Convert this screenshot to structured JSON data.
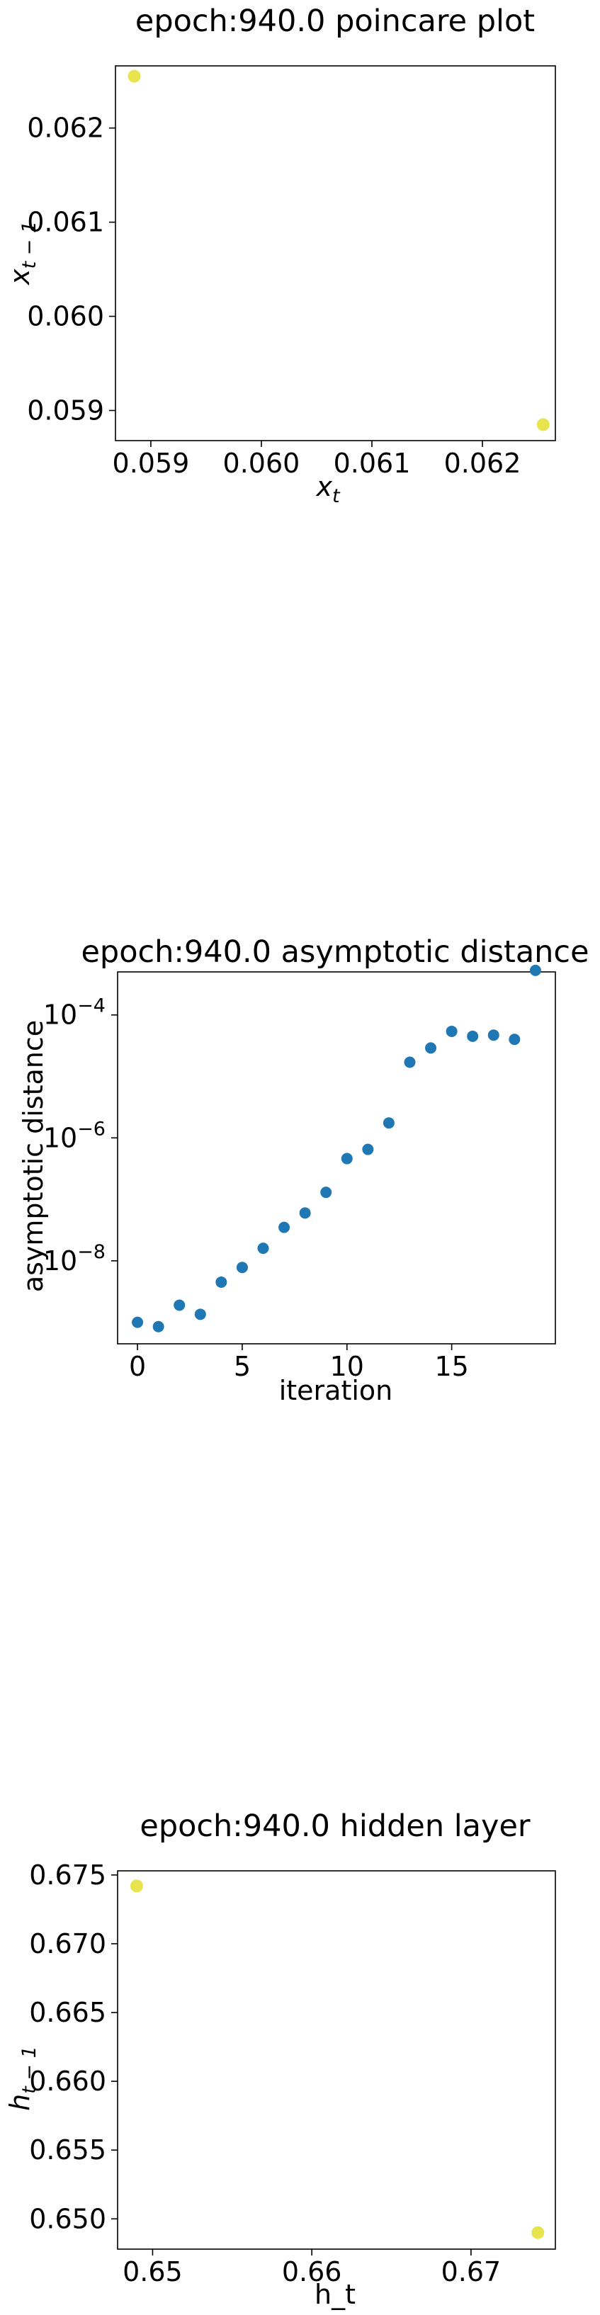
{
  "chart_data": [
    {
      "type": "scatter",
      "title": "epoch:940.0 poincare plot",
      "xlabel": "x_t",
      "ylabel": "x_{t-1}",
      "xlim": [
        0.05868,
        0.06266
      ],
      "ylim": [
        0.05868,
        0.06266
      ],
      "xticks": [
        0.059,
        0.06,
        0.061,
        0.062
      ],
      "yticks": [
        0.059,
        0.06,
        0.061,
        0.062
      ],
      "xtick_labels": [
        "0.059",
        "0.060",
        "0.061",
        "0.062"
      ],
      "ytick_labels": [
        "0.059",
        "0.060",
        "0.061",
        "0.062"
      ],
      "point_color": "#e4e13a",
      "points": [
        {
          "x": 0.05885,
          "y": 0.06255
        },
        {
          "x": 0.06255,
          "y": 0.05885
        }
      ]
    },
    {
      "type": "scatter",
      "title": "epoch:940.0 asymptotic distance",
      "xlabel": "iteration",
      "ylabel": "asymptotic distance",
      "yscale": "log",
      "xlim": [
        -0.95,
        19.95
      ],
      "ylim_log10": [
        -9.35,
        -3.3
      ],
      "xticks": [
        0,
        5,
        10,
        15
      ],
      "xtick_labels": [
        "0",
        "5",
        "10",
        "15"
      ],
      "yticks_log10": [
        -8,
        -6,
        -4
      ],
      "point_color": "#1f77b4",
      "x": [
        0,
        1,
        2,
        3,
        4,
        5,
        6,
        7,
        8,
        9,
        10,
        11,
        12,
        13,
        14,
        15,
        16,
        17,
        18,
        19
      ],
      "y": [
        1e-09,
        8.5e-10,
        1.9e-09,
        1.35e-09,
        4.5e-09,
        7.8e-09,
        1.6e-08,
        3.5e-08,
        6e-08,
        1.3e-07,
        4.6e-07,
        6.5e-07,
        1.75e-06,
        1.7e-05,
        2.9e-05,
        5.4e-05,
        4.5e-05,
        4.7e-05,
        4e-05,
        0.00053
      ]
    },
    {
      "type": "scatter",
      "title": "epoch:940.0 hidden layer",
      "xlabel": "h_t",
      "ylabel": "h_{t-1}",
      "xlim": [
        0.6478,
        0.6753
      ],
      "ylim": [
        0.6478,
        0.6753
      ],
      "xticks": [
        0.65,
        0.66,
        0.67
      ],
      "yticks": [
        0.65,
        0.655,
        0.66,
        0.665,
        0.67,
        0.675
      ],
      "xtick_labels": [
        "0.65",
        "0.66",
        "0.67"
      ],
      "ytick_labels": [
        "0.650",
        "0.655",
        "0.660",
        "0.665",
        "0.670",
        "0.675"
      ],
      "point_color": "#e4e13a",
      "points": [
        {
          "x": 0.649,
          "y": 0.6742
        },
        {
          "x": 0.6742,
          "y": 0.649
        }
      ]
    }
  ]
}
